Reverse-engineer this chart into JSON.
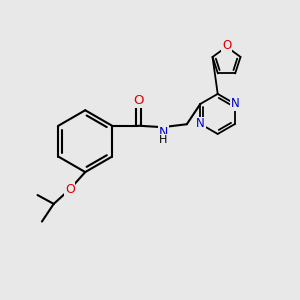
{
  "background_color": "#e8e8e8",
  "bond_color": "#000000",
  "N_color": "#0000cc",
  "O_color": "#dd0000",
  "H_color": "#000000",
  "figsize": [
    3.0,
    3.0
  ],
  "dpi": 100,
  "xlim": [
    0,
    10
  ],
  "ylim": [
    0,
    10
  ]
}
